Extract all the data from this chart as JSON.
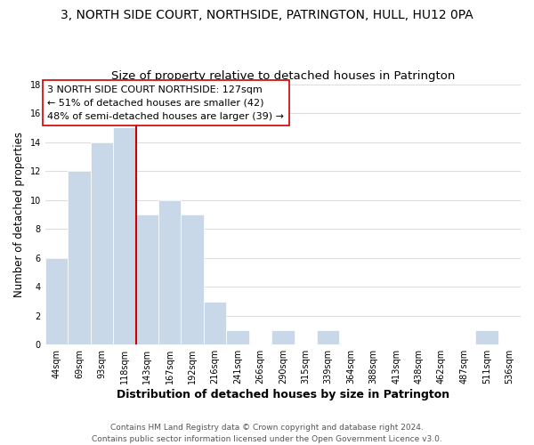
{
  "title": "3, NORTH SIDE COURT, NORTHSIDE, PATRINGTON, HULL, HU12 0PA",
  "subtitle": "Size of property relative to detached houses in Patrington",
  "xlabel": "Distribution of detached houses by size in Patrington",
  "ylabel": "Number of detached properties",
  "bar_labels": [
    "44sqm",
    "69sqm",
    "93sqm",
    "118sqm",
    "143sqm",
    "167sqm",
    "192sqm",
    "216sqm",
    "241sqm",
    "266sqm",
    "290sqm",
    "315sqm",
    "339sqm",
    "364sqm",
    "388sqm",
    "413sqm",
    "438sqm",
    "462sqm",
    "487sqm",
    "511sqm",
    "536sqm"
  ],
  "bar_values": [
    6,
    12,
    14,
    15,
    9,
    10,
    9,
    3,
    1,
    0,
    1,
    0,
    1,
    0,
    0,
    0,
    0,
    0,
    0,
    1,
    0
  ],
  "bar_color": "#c8d8e8",
  "bar_edge_color": "#ffffff",
  "vline_x": 3.5,
  "vline_color": "#cc0000",
  "annotation_lines": [
    "3 NORTH SIDE COURT NORTHSIDE: 127sqm",
    "← 51% of detached houses are smaller (42)",
    "48% of semi-detached houses are larger (39) →"
  ],
  "annotation_box_color": "#ffffff",
  "annotation_box_edgecolor": "#cc0000",
  "ylim": [
    0,
    18
  ],
  "yticks": [
    0,
    2,
    4,
    6,
    8,
    10,
    12,
    14,
    16,
    18
  ],
  "footer": "Contains HM Land Registry data © Crown copyright and database right 2024.\nContains public sector information licensed under the Open Government Licence v3.0.",
  "background_color": "#ffffff",
  "grid_color": "#dddddd",
  "title_fontsize": 10,
  "subtitle_fontsize": 9.5,
  "xlabel_fontsize": 9,
  "ylabel_fontsize": 8.5,
  "tick_fontsize": 7,
  "annotation_fontsize": 8,
  "footer_fontsize": 6.5
}
